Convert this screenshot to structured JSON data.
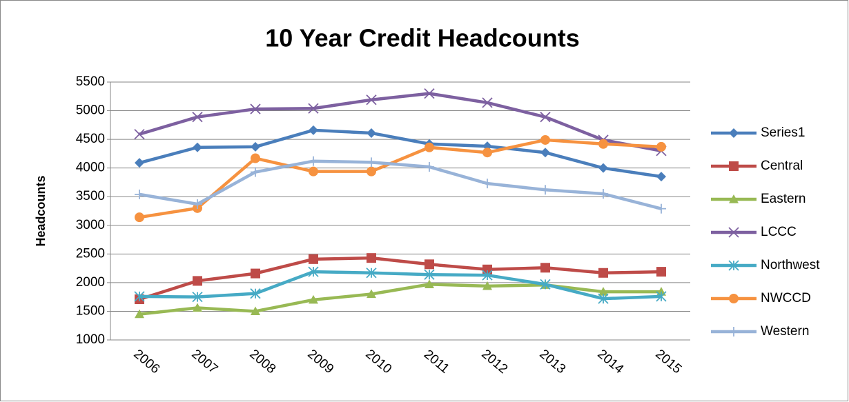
{
  "chart_data": {
    "type": "line",
    "title": "10 Year Credit Headcounts",
    "y_label": "Headcounts",
    "categories": [
      "2006",
      "2007",
      "2008",
      "2009",
      "2010",
      "2011",
      "2012",
      "2013",
      "2014",
      "2015"
    ],
    "ylim": [
      1000,
      5500
    ],
    "yticks": [
      1000,
      1500,
      2000,
      2500,
      3000,
      3500,
      4000,
      4500,
      5000,
      5500
    ],
    "grid": true,
    "legend": "right",
    "series": [
      {
        "name": "Series1",
        "color": "#4a7ebb",
        "marker": "diamond",
        "values": [
          4090,
          4360,
          4370,
          4660,
          4610,
          4420,
          4380,
          4270,
          4000,
          3850
        ]
      },
      {
        "name": "Central",
        "color": "#be4b48",
        "marker": "square",
        "values": [
          1710,
          2030,
          2160,
          2410,
          2430,
          2320,
          2230,
          2260,
          2170,
          2190
        ]
      },
      {
        "name": "Eastern",
        "color": "#98b954",
        "marker": "triangle",
        "values": [
          1450,
          1560,
          1500,
          1700,
          1800,
          1970,
          1940,
          1960,
          1840,
          1840
        ]
      },
      {
        "name": "LCCC",
        "color": "#7d60a0",
        "marker": "x",
        "values": [
          4590,
          4890,
          5030,
          5040,
          5190,
          5300,
          5140,
          4890,
          4490,
          4300
        ]
      },
      {
        "name": "Northwest",
        "color": "#46aac5",
        "marker": "star",
        "values": [
          1760,
          1750,
          1810,
          2190,
          2170,
          2140,
          2130,
          1970,
          1720,
          1760
        ]
      },
      {
        "name": "NWCCD",
        "color": "#f69240",
        "marker": "circle",
        "values": [
          3140,
          3300,
          4170,
          3940,
          3940,
          4360,
          4270,
          4490,
          4420,
          4370
        ]
      },
      {
        "name": "Western",
        "color": "#98b3d8",
        "marker": "plus",
        "values": [
          3540,
          3370,
          3930,
          4120,
          4100,
          4020,
          3730,
          3620,
          3550,
          3290
        ]
      }
    ]
  }
}
